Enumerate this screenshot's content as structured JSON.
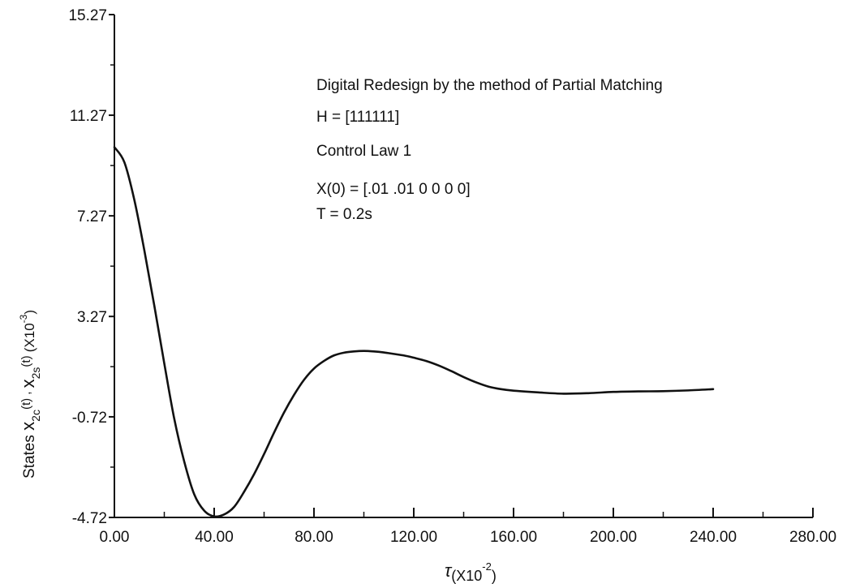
{
  "chart_data": {
    "type": "line",
    "title": "",
    "xlabel": "τ(X10-2)",
    "xlabel_parts": {
      "symbol": "τ",
      "unit_prefix": "(X10",
      "exp": "-2",
      "unit_suffix": ")"
    },
    "ylabel": "States x2c(t) , x2s(t) (X10-3)",
    "ylabel_parts": {
      "prefix": "States ",
      "v1": "x",
      "v1_sub": "2c",
      "v1_arg": "(t) , ",
      "v2": "x",
      "v2_sub": "2s",
      "v2_arg": "(t)  ",
      "unit_prefix": "(X10",
      "exp": "-3",
      "unit_suffix": ")"
    },
    "xlim": [
      0,
      280
    ],
    "ylim": [
      -4.72,
      15.27
    ],
    "xticks": [
      0,
      40,
      80,
      120,
      160,
      200,
      240,
      280
    ],
    "xtick_labels": [
      "0.00",
      "40.00",
      "80.00",
      "120.00",
      "160.00",
      "200.00",
      "240.00",
      "280.00"
    ],
    "yticks": [
      -4.72,
      -0.72,
      3.27,
      7.27,
      11.27,
      15.27
    ],
    "ytick_labels": [
      "-4.72",
      "-0.72",
      "3.27",
      "7.27",
      "11.27",
      "15.27"
    ],
    "grid": false,
    "annotations": [
      {
        "text": "Digital Redesign by the method of Partial Matching"
      },
      {
        "text": "H = [111111]"
      },
      {
        "text": "Control Law 1"
      },
      {
        "text": "X(0) = [.01 .01 0 0 0 0]"
      },
      {
        "text": "T = 0.2s"
      }
    ],
    "series": [
      {
        "x": [
          0,
          4,
          8,
          12,
          16,
          20,
          24,
          28,
          32,
          36,
          40,
          44,
          48,
          52,
          56,
          60,
          64,
          68,
          72,
          76,
          80,
          84,
          88,
          92,
          96,
          100,
          104,
          108,
          112,
          116,
          120,
          125,
          130,
          135,
          140,
          145,
          150,
          155,
          160,
          170,
          180,
          190,
          200,
          210,
          220,
          230,
          240
        ],
        "y": [
          10.0,
          9.4,
          7.9,
          5.9,
          3.7,
          1.4,
          -0.8,
          -2.5,
          -3.8,
          -4.45,
          -4.68,
          -4.6,
          -4.3,
          -3.7,
          -3.0,
          -2.2,
          -1.35,
          -0.55,
          0.15,
          0.75,
          1.2,
          1.5,
          1.72,
          1.83,
          1.88,
          1.9,
          1.88,
          1.84,
          1.78,
          1.72,
          1.63,
          1.5,
          1.32,
          1.1,
          0.86,
          0.65,
          0.48,
          0.38,
          0.32,
          0.25,
          0.2,
          0.22,
          0.27,
          0.29,
          0.3,
          0.33,
          0.38
        ],
        "color": "#111111"
      }
    ]
  }
}
